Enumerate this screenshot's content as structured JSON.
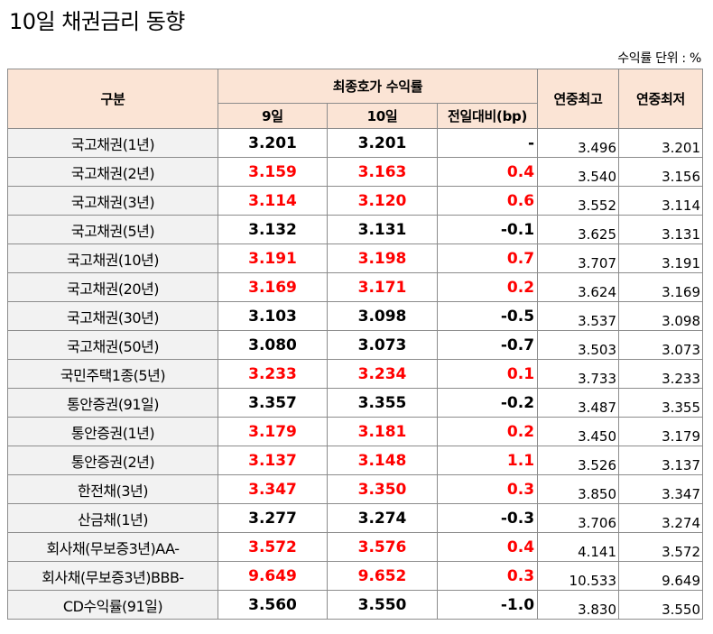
{
  "title": "10일 채권금리 동향",
  "unit_note": "수익률 단위 : %",
  "header": {
    "category": "구분",
    "closing_yield": "최종호가 수익률",
    "day9": "9일",
    "day10": "10일",
    "change": "전일대비(bp)",
    "year_high": "연중최고",
    "year_low": "연중최저"
  },
  "colors": {
    "rise": "#ff0000",
    "neutral": "#000000",
    "header_bg": "#fbe4d5",
    "category_bg": "#f2f2f2"
  },
  "rows": [
    {
      "name": "국고채권(1년)",
      "d9": "3.201",
      "d10": "3.201",
      "chg": "-",
      "high": "3.496",
      "low": "3.201",
      "dir": "flat"
    },
    {
      "name": "국고채권(2년)",
      "d9": "3.159",
      "d10": "3.163",
      "chg": "0.4",
      "high": "3.540",
      "low": "3.156",
      "dir": "up"
    },
    {
      "name": "국고채권(3년)",
      "d9": "3.114",
      "d10": "3.120",
      "chg": "0.6",
      "high": "3.552",
      "low": "3.114",
      "dir": "up"
    },
    {
      "name": "국고채권(5년)",
      "d9": "3.132",
      "d10": "3.131",
      "chg": "-0.1",
      "high": "3.625",
      "low": "3.131",
      "dir": "flat"
    },
    {
      "name": "국고채권(10년)",
      "d9": "3.191",
      "d10": "3.198",
      "chg": "0.7",
      "high": "3.707",
      "low": "3.191",
      "dir": "up"
    },
    {
      "name": "국고채권(20년)",
      "d9": "3.169",
      "d10": "3.171",
      "chg": "0.2",
      "high": "3.624",
      "low": "3.169",
      "dir": "up"
    },
    {
      "name": "국고채권(30년)",
      "d9": "3.103",
      "d10": "3.098",
      "chg": "-0.5",
      "high": "3.537",
      "low": "3.098",
      "dir": "flat"
    },
    {
      "name": "국고채권(50년)",
      "d9": "3.080",
      "d10": "3.073",
      "chg": "-0.7",
      "high": "3.503",
      "low": "3.073",
      "dir": "flat"
    },
    {
      "name": "국민주택1종(5년)",
      "d9": "3.233",
      "d10": "3.234",
      "chg": "0.1",
      "high": "3.733",
      "low": "3.233",
      "dir": "up"
    },
    {
      "name": "통안증권(91일)",
      "d9": "3.357",
      "d10": "3.355",
      "chg": "-0.2",
      "high": "3.487",
      "low": "3.355",
      "dir": "flat"
    },
    {
      "name": "통안증권(1년)",
      "d9": "3.179",
      "d10": "3.181",
      "chg": "0.2",
      "high": "3.450",
      "low": "3.179",
      "dir": "up"
    },
    {
      "name": "통안증권(2년)",
      "d9": "3.137",
      "d10": "3.148",
      "chg": "1.1",
      "high": "3.526",
      "low": "3.137",
      "dir": "up"
    },
    {
      "name": "한전채(3년)",
      "d9": "3.347",
      "d10": "3.350",
      "chg": "0.3",
      "high": "3.850",
      "low": "3.347",
      "dir": "up"
    },
    {
      "name": "산금채(1년)",
      "d9": "3.277",
      "d10": "3.274",
      "chg": "-0.3",
      "high": "3.706",
      "low": "3.274",
      "dir": "flat"
    },
    {
      "name": "회사채(무보증3년)AA-",
      "d9": "3.572",
      "d10": "3.576",
      "chg": "0.4",
      "high": "4.141",
      "low": "3.572",
      "dir": "up"
    },
    {
      "name": "회사채(무보증3년)BBB-",
      "d9": "9.649",
      "d10": "9.652",
      "chg": "0.3",
      "high": "10.533",
      "low": "9.649",
      "dir": "up"
    },
    {
      "name": "CD수익률(91일)",
      "d9": "3.560",
      "d10": "3.550",
      "chg": "-1.0",
      "high": "3.830",
      "low": "3.550",
      "dir": "flat"
    }
  ]
}
